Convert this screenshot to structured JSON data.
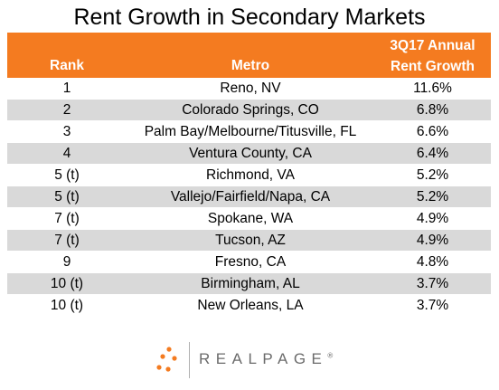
{
  "title": "Rent Growth in Secondary Markets",
  "colors": {
    "header_bg": "#F47B20",
    "stripe_bg": "#D9D9D9",
    "row_bg": "#FFFFFF",
    "logo_accent": "#F47B20"
  },
  "header": {
    "rank": "Rank",
    "metro": "Metro",
    "growth_line1": "3Q17 Annual",
    "growth_line2": "Rent Growth"
  },
  "logo": {
    "text": "REALPAGE",
    "mark": "®",
    "icon": "dots-icon"
  },
  "chart_data": {
    "type": "table",
    "title": "Rent Growth in Secondary Markets",
    "columns": [
      "Rank",
      "Metro",
      "3Q17 Annual Rent Growth"
    ],
    "rows": [
      {
        "rank": "1",
        "metro": "Reno, NV",
        "growth": "11.6%"
      },
      {
        "rank": "2",
        "metro": "Colorado Springs, CO",
        "growth": "6.8%"
      },
      {
        "rank": "3",
        "metro": "Palm Bay/Melbourne/Titusville, FL",
        "growth": "6.6%"
      },
      {
        "rank": "4",
        "metro": "Ventura County, CA",
        "growth": "6.4%"
      },
      {
        "rank": "5 (t)",
        "metro": "Richmond, VA",
        "growth": "5.2%"
      },
      {
        "rank": "5 (t)",
        "metro": "Vallejo/Fairfield/Napa, CA",
        "growth": "5.2%"
      },
      {
        "rank": "7 (t)",
        "metro": "Spokane, WA",
        "growth": "4.9%"
      },
      {
        "rank": "7 (t)",
        "metro": "Tucson, AZ",
        "growth": "4.9%"
      },
      {
        "rank": "9",
        "metro": "Fresno, CA",
        "growth": "4.8%"
      },
      {
        "rank": "10 (t)",
        "metro": "Birmingham, AL",
        "growth": "3.7%"
      },
      {
        "rank": "10 (t)",
        "metro": "New Orleans, LA",
        "growth": "3.7%"
      }
    ]
  }
}
